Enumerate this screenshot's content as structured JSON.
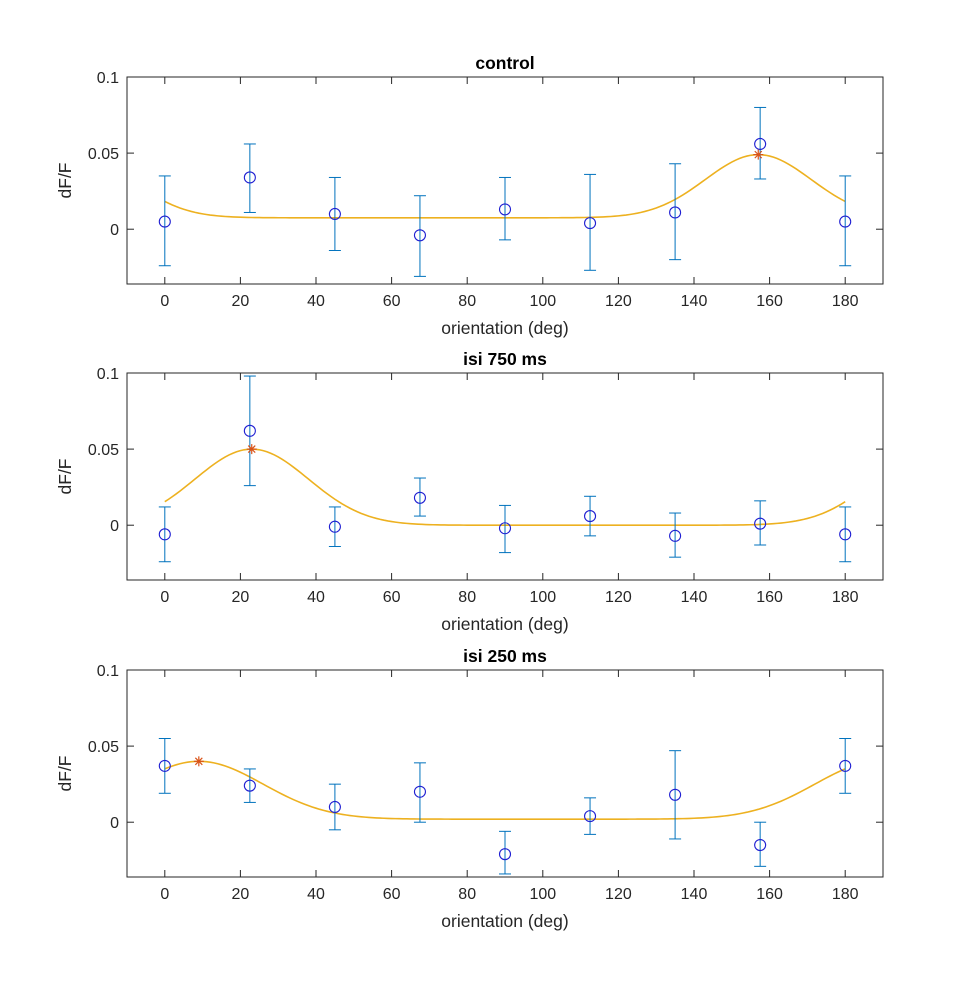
{
  "colors": {
    "errorbar": "#0072BD",
    "marker": "#1f1fd2",
    "fit": "#EDB120",
    "peak": "#D95319",
    "axis": "#262626"
  },
  "chart_data": [
    {
      "type": "scatter",
      "title": "control",
      "xlabel": "orientation (deg)",
      "ylabel": "dF/F",
      "xlim": [
        -10,
        190
      ],
      "ylim": [
        -0.036,
        0.1
      ],
      "xticks": [
        0,
        20,
        40,
        60,
        80,
        100,
        120,
        140,
        160,
        180
      ],
      "xtick_labels": [
        "0",
        "20",
        "40",
        "60",
        "80",
        "100",
        "120",
        "140",
        "160",
        "180"
      ],
      "yticks": [
        0,
        0.05,
        0.1
      ],
      "ytick_labels": [
        "0",
        "0.05",
        "0.1"
      ],
      "grid": false,
      "series": [
        {
          "x": [
            0,
            22.5,
            45,
            67.5,
            90,
            112.5,
            135,
            157.5,
            180
          ],
          "y": [
            0.005,
            0.034,
            0.01,
            -0.004,
            0.013,
            0.004,
            0.011,
            0.056,
            0.005
          ],
          "err_low": [
            -0.024,
            0.011,
            -0.014,
            -0.031,
            -0.007,
            -0.027,
            -0.02,
            0.033,
            -0.024
          ],
          "err_high": [
            0.035,
            0.056,
            0.034,
            0.022,
            0.034,
            0.036,
            0.043,
            0.08,
            0.035
          ]
        }
      ],
      "fit": {
        "baseline": 0.0075,
        "amplitude": 0.0415,
        "center": 157,
        "width": 14
      },
      "peak": {
        "x": 157,
        "y": 0.049
      }
    },
    {
      "type": "scatter",
      "title": "isi 750 ms",
      "xlabel": "orientation (deg)",
      "ylabel": "dF/F",
      "xlim": [
        -10,
        190
      ],
      "ylim": [
        -0.036,
        0.1
      ],
      "xticks": [
        0,
        20,
        40,
        60,
        80,
        100,
        120,
        140,
        160,
        180
      ],
      "xtick_labels": [
        "0",
        "20",
        "40",
        "60",
        "80",
        "100",
        "120",
        "140",
        "160",
        "180"
      ],
      "yticks": [
        0,
        0.05,
        0.1
      ],
      "ytick_labels": [
        "0",
        "0.05",
        "0.1"
      ],
      "grid": false,
      "series": [
        {
          "x": [
            0,
            22.5,
            45,
            67.5,
            90,
            112.5,
            135,
            157.5,
            180
          ],
          "y": [
            -0.006,
            0.062,
            -0.001,
            0.018,
            -0.002,
            0.006,
            -0.007,
            0.001,
            -0.006
          ],
          "err_low": [
            -0.024,
            0.026,
            -0.014,
            0.006,
            -0.018,
            -0.007,
            -0.021,
            -0.013,
            -0.024
          ],
          "err_high": [
            0.012,
            0.098,
            0.012,
            0.031,
            0.013,
            0.019,
            0.008,
            0.016,
            0.012
          ]
        }
      ],
      "fit": {
        "baseline": 0.0,
        "amplitude": 0.05,
        "center": 23,
        "width": 15
      },
      "peak": {
        "x": 23,
        "y": 0.05
      }
    },
    {
      "type": "scatter",
      "title": "isi 250 ms",
      "xlabel": "orientation (deg)",
      "ylabel": "dF/F",
      "xlim": [
        -10,
        190
      ],
      "ylim": [
        -0.036,
        0.1
      ],
      "xticks": [
        0,
        20,
        40,
        60,
        80,
        100,
        120,
        140,
        160,
        180
      ],
      "xtick_labels": [
        "0",
        "20",
        "40",
        "60",
        "80",
        "100",
        "120",
        "140",
        "160",
        "180"
      ],
      "yticks": [
        0,
        0.05,
        0.1
      ],
      "ytick_labels": [
        "0",
        "0.05",
        "0.1"
      ],
      "grid": false,
      "series": [
        {
          "x": [
            0,
            22.5,
            45,
            67.5,
            90,
            112.5,
            135,
            157.5,
            180
          ],
          "y": [
            0.037,
            0.024,
            0.01,
            0.02,
            -0.021,
            0.004,
            0.018,
            -0.015,
            0.037
          ],
          "err_low": [
            0.019,
            0.013,
            -0.005,
            0.0,
            -0.034,
            -0.008,
            -0.011,
            -0.029,
            0.019
          ],
          "err_high": [
            0.055,
            0.035,
            0.025,
            0.039,
            -0.006,
            0.016,
            0.047,
            0.0,
            0.055
          ]
        }
      ],
      "fit": {
        "baseline": 0.002,
        "amplitude": 0.038,
        "center": 9,
        "width": 17
      },
      "peak": {
        "x": 9,
        "y": 0.04
      }
    }
  ]
}
